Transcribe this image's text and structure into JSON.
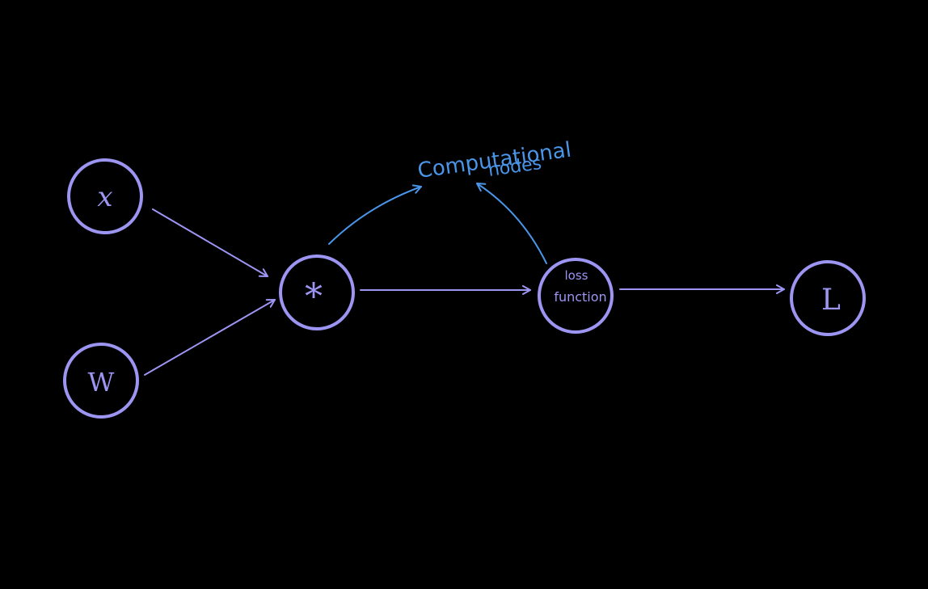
{
  "colors": {
    "background": "#000000",
    "node": "#9d95f2",
    "annotation": "#4a95e8"
  },
  "nodes": {
    "x": {
      "label": "x"
    },
    "w": {
      "label": "W"
    },
    "multiply": {
      "label": "*"
    },
    "loss": {
      "line1": "loss",
      "line2": "function"
    },
    "L": {
      "label": "L"
    }
  },
  "annotation": {
    "line1": "Computational",
    "line2": "nodes"
  }
}
